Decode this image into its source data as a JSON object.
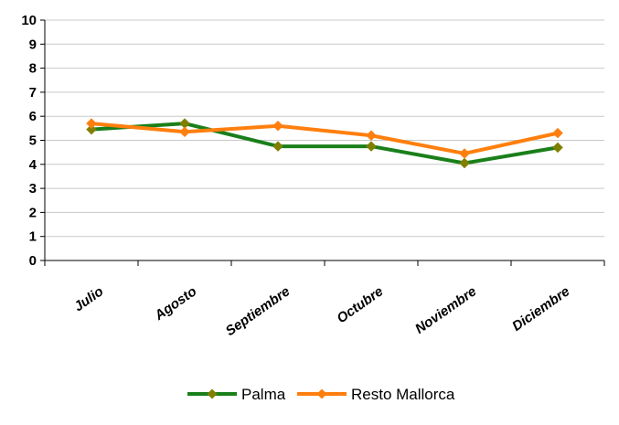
{
  "chart_data": {
    "type": "line",
    "categories": [
      "Julio",
      "Agosto",
      "Septiembre",
      "Octubre",
      "Noviembre",
      "Diciembre"
    ],
    "series": [
      {
        "name": "Palma",
        "values": [
          5.45,
          5.7,
          4.75,
          4.75,
          4.05,
          4.7
        ],
        "color": "#1a7f1a",
        "marker_color": "#808000"
      },
      {
        "name": "Resto Mallorca",
        "values": [
          5.7,
          5.35,
          5.6,
          5.2,
          4.45,
          5.3
        ],
        "color": "#ff7f0e",
        "marker_color": "#ff7f0e"
      }
    ],
    "ylim": [
      0,
      10
    ],
    "yticks": [
      0,
      1,
      2,
      3,
      4,
      5,
      6,
      7,
      8,
      9,
      10
    ],
    "grid": true,
    "legend": "bottom",
    "title": "",
    "xlabel": "",
    "ylabel": ""
  }
}
